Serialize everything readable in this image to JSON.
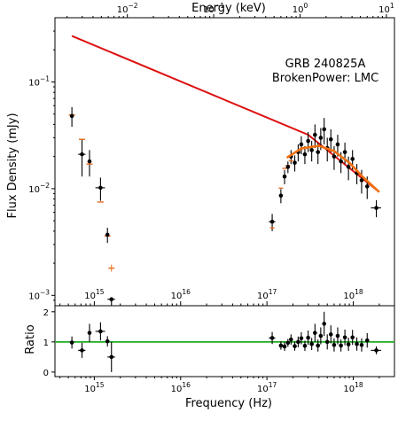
{
  "chart_data": [
    {
      "type": "scatter",
      "panel": "main",
      "annotation_lines": [
        "GRB 240825A",
        "BrokenPower: LMC"
      ],
      "xlabel": "",
      "ylabel": "Flux Density (mJy)",
      "top_axis_label": "Energy (keV)",
      "x_scale": "log",
      "y_scale": "log",
      "xlim": [
        350000000000000.0,
        3e+18
      ],
      "ylim": [
        0.0008,
        0.4
      ],
      "top_axis_range_keV": [
        0.00145,
        12.4
      ],
      "top_ticks": [
        {
          "value": 0.01,
          "base": "10",
          "exp": "−2"
        },
        {
          "value": 0.1,
          "base": "10",
          "exp": "−1"
        },
        {
          "value": 1,
          "base": "10",
          "exp": "0"
        },
        {
          "value": 10,
          "base": "10",
          "exp": "1"
        }
      ],
      "inner_x_ticks": [
        {
          "value": 1000000000000000.0,
          "base": "10",
          "exp": "15"
        },
        {
          "value": 1e+16,
          "base": "10",
          "exp": "16"
        },
        {
          "value": 1e+17,
          "base": "10",
          "exp": "17"
        },
        {
          "value": 1e+18,
          "base": "10",
          "exp": "18"
        }
      ],
      "y_ticks": [
        {
          "value": 0.001,
          "base": "10",
          "exp": "−3"
        },
        {
          "value": 0.01,
          "base": "10",
          "exp": "−2"
        },
        {
          "value": 0.1,
          "base": "10",
          "exp": "−1"
        }
      ],
      "colors": {
        "model": "#dd1111",
        "model_fit": "#f07010",
        "data": "#000000",
        "model_marker": "#e86a1a"
      },
      "model_line": {
        "x": [
          550000000000000.0,
          3e+17,
          2e+18
        ],
        "y": [
          0.27,
          0.032,
          0.0093
        ]
      },
      "model_fit_curve": {
        "x": [
          1.7e+17,
          2.5e+17,
          4e+17,
          6e+17,
          9e+17,
          1.3e+18,
          2e+18
        ],
        "y": [
          0.0195,
          0.0238,
          0.0252,
          0.0225,
          0.0175,
          0.0128,
          0.0093
        ]
      },
      "data_points": [
        {
          "x": 550000000000000.0,
          "y": 0.048,
          "xerr": [
            10000000000000.0,
            10000000000000.0
          ],
          "yerr": [
            0.01,
            0.01
          ],
          "model": 0.049
        },
        {
          "x": 720000000000000.0,
          "y": 0.021,
          "xerr": [
            70000000000000.0,
            70000000000000.0
          ],
          "yerr": [
            0.008,
            0.008
          ],
          "model": 0.029
        },
        {
          "x": 880000000000000.0,
          "y": 0.018,
          "xerr": [
            40000000000000.0,
            40000000000000.0
          ],
          "yerr": [
            0.005,
            0.005
          ],
          "model": 0.017
        },
        {
          "x": 1180000000000000.0,
          "y": 0.0102,
          "xerr": [
            150000000000000.0,
            150000000000000.0
          ],
          "yerr": [
            0.0025,
            0.0025
          ],
          "model": 0.0075
        },
        {
          "x": 1420000000000000.0,
          "y": 0.0037,
          "xerr": [
            70000000000000.0,
            70000000000000.0
          ],
          "yerr": [
            0.0006,
            0.0006
          ],
          "model": 0.0036
        },
        {
          "x": 1580000000000000.0,
          "y": 0.00092,
          "xerr": [
            160000000000000.0,
            160000000000000.0
          ],
          "yerr": [
            0.0002,
            0.0
          ],
          "model": 0.0018
        },
        {
          "x": 1.15e+17,
          "y": 0.0049,
          "xerr": [
            1e+16,
            1e+16
          ],
          "yerr": [
            0.0009,
            0.0009
          ],
          "model": 0.0043
        },
        {
          "x": 1.45e+17,
          "y": 0.0086,
          "xerr": [
            4000000000000000.0,
            4000000000000000.0
          ],
          "yerr": [
            0.0013,
            0.0013
          ],
          "model": 0.0101
        },
        {
          "x": 1.6e+17,
          "y": 0.013,
          "xerr": [
            4000000000000000.0,
            4000000000000000.0
          ],
          "yerr": [
            0.002,
            0.002
          ],
          "model": 0.0155
        },
        {
          "x": 1.75e+17,
          "y": 0.016,
          "xerr": [
            4000000000000000.0,
            4000000000000000.0
          ],
          "yerr": [
            0.002,
            0.002
          ],
          "model": 0.0165
        },
        {
          "x": 1.9e+17,
          "y": 0.02,
          "xerr": [
            5000000000000000.0,
            5000000000000000.0
          ],
          "yerr": [
            0.003,
            0.003
          ],
          "model": 0.0183
        },
        {
          "x": 2.1e+17,
          "y": 0.0175,
          "xerr": [
            5000000000000000.0,
            5000000000000000.0
          ],
          "yerr": [
            0.003,
            0.003
          ],
          "model": 0.0205
        },
        {
          "x": 2.3e+17,
          "y": 0.022,
          "xerr": [
            5000000000000000.0,
            5000000000000000.0
          ],
          "yerr": [
            0.004,
            0.004
          ],
          "model": 0.0222
        },
        {
          "x": 2.5e+17,
          "y": 0.026,
          "xerr": [
            6000000000000000.0,
            6000000000000000.0
          ],
          "yerr": [
            0.005,
            0.005
          ],
          "model": 0.0235
        },
        {
          "x": 2.75e+17,
          "y": 0.021,
          "xerr": [
            6000000000000000.0,
            6000000000000000.0
          ],
          "yerr": [
            0.004,
            0.004
          ],
          "model": 0.0243
        },
        {
          "x": 3e+17,
          "y": 0.028,
          "xerr": [
            7000000000000000.0,
            7000000000000000.0
          ],
          "yerr": [
            0.006,
            0.006
          ],
          "model": 0.0248
        },
        {
          "x": 3.3e+17,
          "y": 0.023,
          "xerr": [
            7000000000000000.0,
            7000000000000000.0
          ],
          "yerr": [
            0.005,
            0.005
          ],
          "model": 0.0251
        },
        {
          "x": 3.6e+17,
          "y": 0.032,
          "xerr": [
            8000000000000000.0,
            8000000000000000.0
          ],
          "yerr": [
            0.008,
            0.008
          ],
          "model": 0.0252
        },
        {
          "x": 3.9e+17,
          "y": 0.022,
          "xerr": [
            8000000000000000.0,
            8000000000000000.0
          ],
          "yerr": [
            0.005,
            0.005
          ],
          "model": 0.0252
        },
        {
          "x": 4.2e+17,
          "y": 0.03,
          "xerr": [
            9000000000000000.0,
            9000000000000000.0
          ],
          "yerr": [
            0.007,
            0.007
          ],
          "model": 0.0249
        },
        {
          "x": 4.6e+17,
          "y": 0.036,
          "xerr": [
            1e+16,
            1e+16
          ],
          "yerr": [
            0.01,
            0.01
          ],
          "model": 0.0244
        },
        {
          "x": 5e+17,
          "y": 0.024,
          "xerr": [
            1e+16,
            1e+16
          ],
          "yerr": [
            0.006,
            0.006
          ],
          "model": 0.0238
        },
        {
          "x": 5.5e+17,
          "y": 0.029,
          "xerr": [
            1e+16,
            1e+16
          ],
          "yerr": [
            0.007,
            0.007
          ],
          "model": 0.023
        },
        {
          "x": 6e+17,
          "y": 0.02,
          "xerr": [
            1.2e+16,
            1.2e+16
          ],
          "yerr": [
            0.005,
            0.005
          ],
          "model": 0.0223
        },
        {
          "x": 6.6e+17,
          "y": 0.026,
          "xerr": [
            1.3e+16,
            1.3e+16
          ],
          "yerr": [
            0.006,
            0.006
          ],
          "model": 0.0214
        },
        {
          "x": 7.2e+17,
          "y": 0.018,
          "xerr": [
            1.4e+16,
            1.4e+16
          ],
          "yerr": [
            0.004,
            0.004
          ],
          "model": 0.0205
        },
        {
          "x": 8e+17,
          "y": 0.022,
          "xerr": [
            1.6e+16,
            1.6e+16
          ],
          "yerr": [
            0.005,
            0.005
          ],
          "model": 0.0192
        },
        {
          "x": 8.8e+17,
          "y": 0.016,
          "xerr": [
            1.8e+16,
            1.8e+16
          ],
          "yerr": [
            0.004,
            0.004
          ],
          "model": 0.0178
        },
        {
          "x": 9.8e+17,
          "y": 0.019,
          "xerr": [
            2e+16,
            2e+16
          ],
          "yerr": [
            0.004,
            0.004
          ],
          "model": 0.0165
        },
        {
          "x": 1.1e+18,
          "y": 0.014,
          "xerr": [
            2e+16,
            2e+16
          ],
          "yerr": [
            0.003,
            0.003
          ],
          "model": 0.015
        },
        {
          "x": 1.25e+18,
          "y": 0.012,
          "xerr": [
            3e+16,
            3e+16
          ],
          "yerr": [
            0.003,
            0.003
          ],
          "model": 0.0133
        },
        {
          "x": 1.45e+18,
          "y": 0.0105,
          "xerr": [
            4e+16,
            4e+16
          ],
          "yerr": [
            0.0025,
            0.0025
          ],
          "model": 0.0115
        },
        {
          "x": 1.85e+18,
          "y": 0.0066,
          "xerr": [
            2.5e+17,
            2.5e+17
          ],
          "yerr": [
            0.0012,
            0.0012
          ],
          "model": 0.0093
        }
      ]
    },
    {
      "type": "scatter",
      "panel": "ratio",
      "xlabel": "Frequency (Hz)",
      "ylabel": "Ratio",
      "x_scale": "log",
      "y_scale": "linear",
      "xlim": [
        350000000000000.0,
        3e+18
      ],
      "ylim": [
        -0.15,
        2.2
      ],
      "x_ticks": [
        {
          "value": 1000000000000000.0,
          "base": "10",
          "exp": "15"
        },
        {
          "value": 1e+16,
          "base": "10",
          "exp": "16"
        },
        {
          "value": 1e+17,
          "base": "10",
          "exp": "17"
        },
        {
          "value": 1e+18,
          "base": "10",
          "exp": "18"
        }
      ],
      "y_ticks": [
        {
          "value": 0,
          "label": "0"
        },
        {
          "value": 1,
          "label": "1"
        },
        {
          "value": 2,
          "label": "2"
        }
      ],
      "reference_line": 1.0,
      "colors": {
        "reference": "#22aa22",
        "data": "#000000"
      },
      "data_points": [
        {
          "x": 550000000000000.0,
          "y": 0.98,
          "xerr": [
            10000000000000.0,
            10000000000000.0
          ],
          "yerr": 0.2
        },
        {
          "x": 720000000000000.0,
          "y": 0.72,
          "xerr": [
            70000000000000.0,
            70000000000000.0
          ],
          "yerr": 0.25
        },
        {
          "x": 880000000000000.0,
          "y": 1.3,
          "xerr": [
            40000000000000.0,
            40000000000000.0
          ],
          "yerr": 0.3
        },
        {
          "x": 1180000000000000.0,
          "y": 1.35,
          "xerr": [
            150000000000000.0,
            150000000000000.0
          ],
          "yerr": 0.3
        },
        {
          "x": 1420000000000000.0,
          "y": 1.02,
          "xerr": [
            70000000000000.0,
            70000000000000.0
          ],
          "yerr": 0.17
        },
        {
          "x": 1580000000000000.0,
          "y": 0.5,
          "xerr": [
            160000000000000.0,
            160000000000000.0
          ],
          "yerr": 0.5
        },
        {
          "x": 1.15e+17,
          "y": 1.13,
          "xerr": [
            1e+16,
            1e+16
          ],
          "yerr": 0.2
        },
        {
          "x": 1.45e+17,
          "y": 0.88,
          "xerr": [
            4000000000000000.0,
            4000000000000000.0
          ],
          "yerr": 0.14
        },
        {
          "x": 1.6e+17,
          "y": 0.85,
          "xerr": [
            4000000000000000.0,
            4000000000000000.0
          ],
          "yerr": 0.15
        },
        {
          "x": 1.75e+17,
          "y": 0.97,
          "xerr": [
            4000000000000000.0,
            4000000000000000.0
          ],
          "yerr": 0.13
        },
        {
          "x": 1.9e+17,
          "y": 1.08,
          "xerr": [
            5000000000000000.0,
            5000000000000000.0
          ],
          "yerr": 0.17
        },
        {
          "x": 2.1e+17,
          "y": 0.86,
          "xerr": [
            5000000000000000.0,
            5000000000000000.0
          ],
          "yerr": 0.15
        },
        {
          "x": 2.3e+17,
          "y": 1.0,
          "xerr": [
            5000000000000000.0,
            5000000000000000.0
          ],
          "yerr": 0.18
        },
        {
          "x": 2.5e+17,
          "y": 1.12,
          "xerr": [
            6000000000000000.0,
            6000000000000000.0
          ],
          "yerr": 0.2
        },
        {
          "x": 2.75e+17,
          "y": 0.87,
          "xerr": [
            6000000000000000.0,
            6000000000000000.0
          ],
          "yerr": 0.17
        },
        {
          "x": 3e+17,
          "y": 1.14,
          "xerr": [
            7000000000000000.0,
            7000000000000000.0
          ],
          "yerr": 0.24
        },
        {
          "x": 3.3e+17,
          "y": 0.93,
          "xerr": [
            7000000000000000.0,
            7000000000000000.0
          ],
          "yerr": 0.2
        },
        {
          "x": 3.6e+17,
          "y": 1.3,
          "xerr": [
            8000000000000000.0,
            8000000000000000.0
          ],
          "yerr": 0.3
        },
        {
          "x": 3.9e+17,
          "y": 0.88,
          "xerr": [
            8000000000000000.0,
            8000000000000000.0
          ],
          "yerr": 0.2
        },
        {
          "x": 4.2e+17,
          "y": 1.2,
          "xerr": [
            9000000000000000.0,
            9000000000000000.0
          ],
          "yerr": 0.28
        },
        {
          "x": 4.6e+17,
          "y": 1.6,
          "xerr": [
            1e+16,
            1e+16
          ],
          "yerr": 0.4
        },
        {
          "x": 5e+17,
          "y": 1.0,
          "xerr": [
            1e+16,
            1e+16
          ],
          "yerr": 0.25
        },
        {
          "x": 5.5e+17,
          "y": 1.25,
          "xerr": [
            1e+16,
            1e+16
          ],
          "yerr": 0.3
        },
        {
          "x": 6e+17,
          "y": 0.9,
          "xerr": [
            1.2e+16,
            1.2e+16
          ],
          "yerr": 0.22
        },
        {
          "x": 6.6e+17,
          "y": 1.2,
          "xerr": [
            1.3e+16,
            1.3e+16
          ],
          "yerr": 0.28
        },
        {
          "x": 7.2e+17,
          "y": 0.88,
          "xerr": [
            1.4e+16,
            1.4e+16
          ],
          "yerr": 0.2
        },
        {
          "x": 8e+17,
          "y": 1.15,
          "xerr": [
            1.6e+16,
            1.6e+16
          ],
          "yerr": 0.26
        },
        {
          "x": 8.8e+17,
          "y": 0.92,
          "xerr": [
            1.8e+16,
            1.8e+16
          ],
          "yerr": 0.22
        },
        {
          "x": 9.8e+17,
          "y": 1.15,
          "xerr": [
            2e+16,
            2e+16
          ],
          "yerr": 0.25
        },
        {
          "x": 1.1e+18,
          "y": 0.93,
          "xerr": [
            2e+16,
            2e+16
          ],
          "yerr": 0.22
        },
        {
          "x": 1.25e+18,
          "y": 0.9,
          "xerr": [
            3e+16,
            3e+16
          ],
          "yerr": 0.22
        },
        {
          "x": 1.45e+18,
          "y": 1.05,
          "xerr": [
            4e+16,
            4e+16
          ],
          "yerr": 0.24
        },
        {
          "x": 1.85e+18,
          "y": 0.72,
          "xerr": [
            2.5e+17,
            2.5e+17
          ],
          "yerr": 0.13
        }
      ]
    }
  ]
}
